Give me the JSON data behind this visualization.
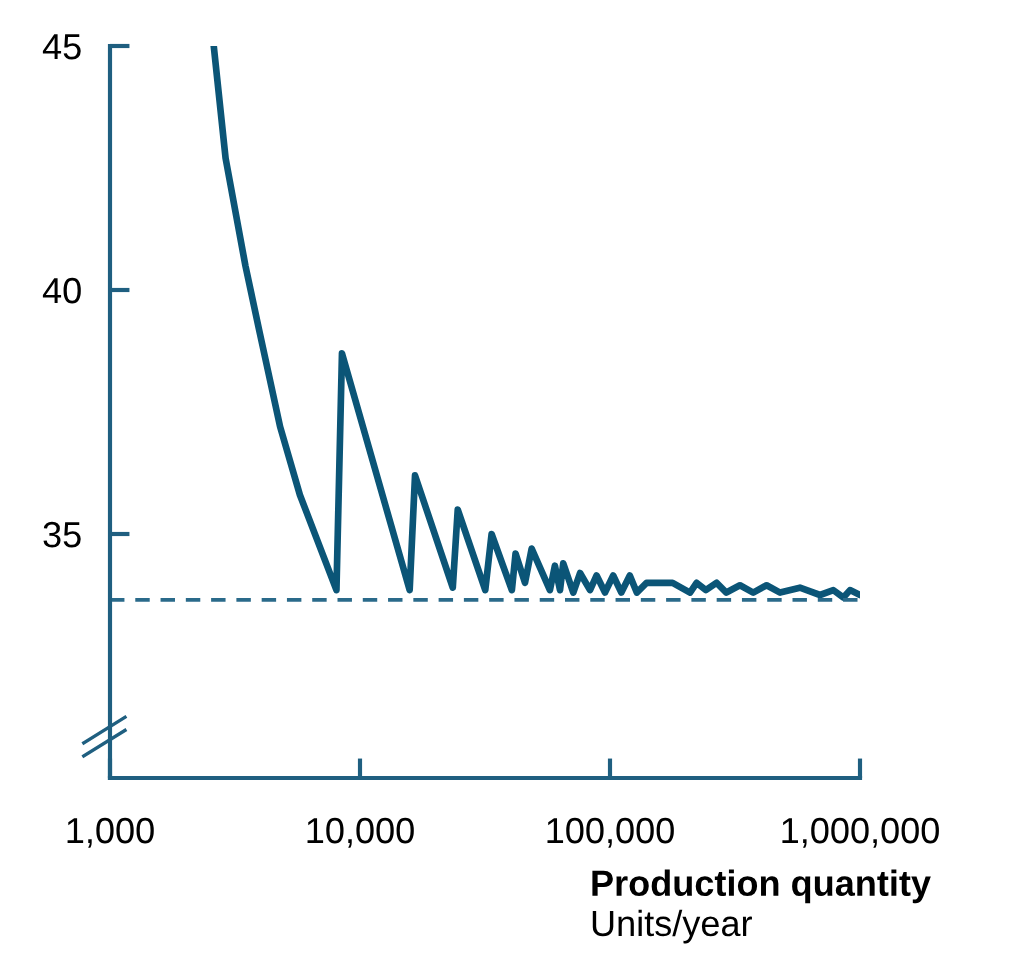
{
  "chart_data": {
    "type": "line",
    "xlabel": "Production quantity",
    "annotations": [
      "Units/year"
    ],
    "log": "x",
    "xlim": [
      1000,
      1000000
    ],
    "xticks": [
      {
        "value": 1000,
        "label": "1,000"
      },
      {
        "value": 10000,
        "label": "10,000"
      },
      {
        "value": 100000,
        "label": "100,000"
      },
      {
        "value": 1000000,
        "label": "1,000,000"
      }
    ],
    "ylim": [
      30,
      45
    ],
    "yticks": [
      35,
      40,
      45
    ],
    "grid": false,
    "marker": "none",
    "line_style": "solid",
    "ref_lines": [
      {
        "axis": "y",
        "value": 33.65,
        "label": null,
        "color": "#2a6a8a",
        "line_style": "dashed"
      }
    ],
    "series": [
      {
        "color": "#0b5577",
        "x": [
          2600,
          2900,
          3480,
          3980,
          4790,
          5750,
          8050,
          8470,
          15800,
          16600,
          23500,
          24600,
          31700,
          33600,
          40500,
          41900,
          45700,
          48600,
          57500,
          60200,
          63100,
          65000,
          71300,
          75900,
          83200,
          88400,
          95500,
          103000,
          111000,
          120000,
          128000,
          140000,
          178000,
          209000,
          222000,
          242000,
          267000,
          292000,
          331000,
          374000,
          423000,
          479000,
          575000,
          692000,
          782000,
          858000,
          912000,
          1000000
        ],
        "values": [
          45,
          42.7,
          40.5,
          39.1,
          37.2,
          35.8,
          33.85,
          38.7,
          33.85,
          36.2,
          33.9,
          35.5,
          33.85,
          35.0,
          33.85,
          34.6,
          34.0,
          34.7,
          33.85,
          34.35,
          33.85,
          34.4,
          33.8,
          34.2,
          33.85,
          34.15,
          33.8,
          34.15,
          33.8,
          34.15,
          33.8,
          34.0,
          34.0,
          33.8,
          34.0,
          33.85,
          34.0,
          33.8,
          33.95,
          33.8,
          33.95,
          33.8,
          33.9,
          33.75,
          33.85,
          33.7,
          33.85,
          33.75
        ]
      }
    ]
  }
}
